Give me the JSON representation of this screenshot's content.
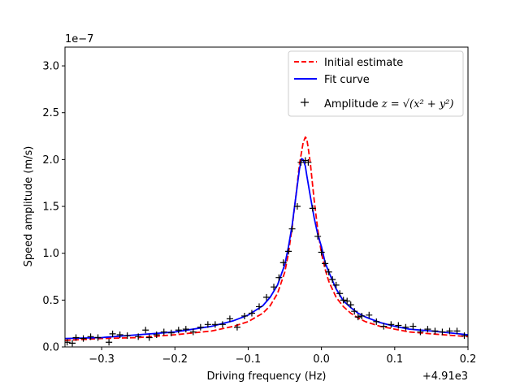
{
  "chart_data": {
    "type": "line",
    "title": "",
    "xlabel": "Driving frequency (Hz)",
    "ylabel": "Speed amplitude (m/s)",
    "x_offset_label": "+4.91e3",
    "y_scale_label": "1e−7",
    "xlim": [
      -0.35,
      0.2
    ],
    "ylim": [
      0,
      3.2
    ],
    "x_ticks": [
      -0.3,
      -0.2,
      -0.1,
      0.0,
      0.1,
      0.2
    ],
    "x_tick_labels": [
      "−0.3",
      "−0.2",
      "−0.1",
      "0.0",
      "0.1",
      "0.2"
    ],
    "y_ticks": [
      0.0,
      0.5,
      1.0,
      1.5,
      2.0,
      2.5,
      3.0
    ],
    "y_tick_labels": [
      "0.0",
      "0.5",
      "1.0",
      "1.5",
      "2.0",
      "2.5",
      "3.0"
    ],
    "grid": false,
    "legend_position": "top-right",
    "legend": {
      "initial_label": "Initial estimate",
      "fit_label": "Fit curve",
      "amplitude_prefix": "Amplitude ",
      "amplitude_math": "z = √(x² + y²)"
    },
    "series": [
      {
        "name": "Initial estimate",
        "style": "dashed",
        "color": "#ff0000",
        "x": [
          -0.35,
          -0.3,
          -0.25,
          -0.2,
          -0.15,
          -0.12,
          -0.1,
          -0.08,
          -0.07,
          -0.06,
          -0.05,
          -0.045,
          -0.04,
          -0.035,
          -0.03,
          -0.025,
          -0.022,
          -0.02,
          -0.018,
          -0.015,
          -0.01,
          -0.005,
          0.0,
          0.005,
          0.01,
          0.02,
          0.03,
          0.04,
          0.05,
          0.06,
          0.08,
          0.1,
          0.12,
          0.15,
          0.2
        ],
        "y": [
          0.07,
          0.09,
          0.1,
          0.13,
          0.17,
          0.22,
          0.27,
          0.36,
          0.44,
          0.57,
          0.8,
          1.0,
          1.28,
          1.6,
          1.95,
          2.18,
          2.24,
          2.22,
          2.12,
          1.95,
          1.57,
          1.25,
          1.0,
          0.83,
          0.7,
          0.53,
          0.43,
          0.36,
          0.31,
          0.27,
          0.22,
          0.19,
          0.16,
          0.14,
          0.11
        ]
      },
      {
        "name": "Fit curve",
        "style": "solid",
        "color": "#0000ff",
        "x": [
          -0.35,
          -0.3,
          -0.25,
          -0.2,
          -0.15,
          -0.12,
          -0.1,
          -0.08,
          -0.07,
          -0.06,
          -0.05,
          -0.045,
          -0.04,
          -0.035,
          -0.03,
          -0.027,
          -0.025,
          -0.022,
          -0.02,
          -0.015,
          -0.01,
          -0.005,
          0.0,
          0.005,
          0.01,
          0.02,
          0.03,
          0.04,
          0.05,
          0.06,
          0.08,
          0.1,
          0.12,
          0.15,
          0.2
        ],
        "y": [
          0.09,
          0.1,
          0.13,
          0.16,
          0.22,
          0.28,
          0.34,
          0.44,
          0.53,
          0.66,
          0.88,
          1.07,
          1.3,
          1.6,
          1.9,
          2.01,
          2.0,
          1.93,
          1.83,
          1.6,
          1.38,
          1.2,
          1.07,
          0.9,
          0.8,
          0.62,
          0.49,
          0.42,
          0.36,
          0.32,
          0.26,
          0.22,
          0.19,
          0.17,
          0.13
        ]
      },
      {
        "name": "Amplitude",
        "style": "markers",
        "marker": "+",
        "color": "#000000",
        "x": [
          -0.347,
          -0.34,
          -0.335,
          -0.325,
          -0.315,
          -0.305,
          -0.29,
          -0.285,
          -0.275,
          -0.265,
          -0.25,
          -0.24,
          -0.235,
          -0.225,
          -0.215,
          -0.205,
          -0.195,
          -0.185,
          -0.175,
          -0.165,
          -0.155,
          -0.145,
          -0.135,
          -0.125,
          -0.115,
          -0.105,
          -0.095,
          -0.085,
          -0.075,
          -0.065,
          -0.058,
          -0.052,
          -0.045,
          -0.04,
          -0.033,
          -0.028,
          -0.022,
          -0.018,
          -0.012,
          -0.005,
          0.0,
          0.005,
          0.01,
          0.015,
          0.02,
          0.025,
          0.03,
          0.035,
          0.04,
          0.045,
          0.05,
          0.055,
          0.065,
          0.075,
          0.085,
          0.095,
          0.105,
          0.115,
          0.125,
          0.135,
          0.145,
          0.155,
          0.165,
          0.175,
          0.185,
          0.195
        ],
        "y": [
          0.05,
          0.04,
          0.1,
          0.09,
          0.11,
          0.1,
          0.05,
          0.14,
          0.13,
          0.12,
          0.11,
          0.18,
          0.1,
          0.13,
          0.16,
          0.15,
          0.18,
          0.19,
          0.16,
          0.21,
          0.24,
          0.24,
          0.24,
          0.3,
          0.21,
          0.33,
          0.36,
          0.43,
          0.53,
          0.64,
          0.74,
          0.9,
          1.02,
          1.26,
          1.5,
          1.97,
          1.99,
          1.97,
          1.48,
          1.18,
          1.01,
          0.89,
          0.8,
          0.72,
          0.66,
          0.57,
          0.5,
          0.49,
          0.45,
          0.38,
          0.32,
          0.33,
          0.34,
          0.27,
          0.22,
          0.24,
          0.23,
          0.21,
          0.22,
          0.16,
          0.19,
          0.17,
          0.16,
          0.17,
          0.17,
          0.12
        ]
      }
    ]
  }
}
